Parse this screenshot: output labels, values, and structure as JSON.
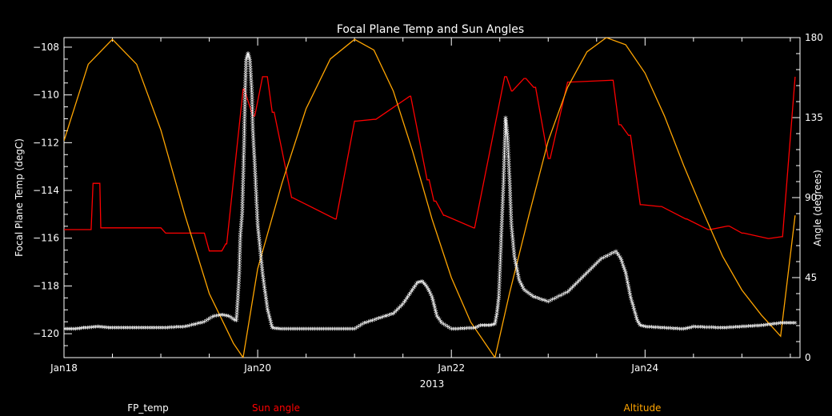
{
  "chart_data": {
    "type": "line",
    "title": "Focal Plane Temp and Sun Angles",
    "xlabel": "2013",
    "ylabel_left": "Focal Plane Temp (degC)",
    "ylabel_right": "Angle (degrees)",
    "xlim": [
      18.0,
      25.6
    ],
    "ylim_left": [
      -121.0,
      -107.6
    ],
    "ylim_right": [
      0,
      180
    ],
    "x_ticks": [
      {
        "value": 18,
        "label": "Jan18"
      },
      {
        "value": 20,
        "label": "Jan20"
      },
      {
        "value": 22,
        "label": "Jan22"
      },
      {
        "value": 24,
        "label": "Jan24"
      }
    ],
    "y_ticks_left": [
      {
        "value": -108,
        "label": "−108"
      },
      {
        "value": -110,
        "label": "−110"
      },
      {
        "value": -112,
        "label": "−112"
      },
      {
        "value": -114,
        "label": "−114"
      },
      {
        "value": -116,
        "label": "−116"
      },
      {
        "value": -118,
        "label": "−118"
      },
      {
        "value": -120,
        "label": "−120"
      }
    ],
    "y_ticks_right": [
      {
        "value": 0,
        "label": "0"
      },
      {
        "value": 45,
        "label": "45"
      },
      {
        "value": 90,
        "label": "90"
      },
      {
        "value": 135,
        "label": "135"
      },
      {
        "value": 180,
        "label": "180"
      }
    ],
    "legend": [
      {
        "label": "FP_temp",
        "color": "#ffffff"
      },
      {
        "label": "Sun angle",
        "color": "#ff0000"
      },
      {
        "label": "Altitude",
        "color": "#ffa500"
      }
    ],
    "series": [
      {
        "name": "Sun angle",
        "axis": "right",
        "color": "#ff0000",
        "style": "step",
        "x": [
          18.0,
          18.28,
          18.3,
          18.37,
          18.38,
          19.0,
          19.05,
          19.45,
          19.5,
          19.63,
          19.67,
          19.68,
          19.85,
          19.86,
          19.95,
          19.97,
          20.05,
          20.1,
          20.15,
          20.17,
          20.35,
          20.36,
          20.8,
          20.81,
          21.0,
          21.02,
          21.2,
          21.22,
          21.57,
          21.58,
          21.75,
          21.77,
          21.82,
          21.84,
          21.92,
          21.93,
          22.23,
          22.24,
          22.55,
          22.57,
          22.62,
          22.63,
          22.75,
          22.77,
          22.85,
          22.87,
          23.0,
          23.02,
          23.2,
          23.22,
          23.65,
          23.67,
          23.73,
          23.75,
          23.83,
          23.85,
          23.95,
          23.97,
          24.15,
          24.17,
          24.42,
          24.43,
          24.65,
          24.67,
          24.85,
          24.87,
          25.0,
          25.02,
          25.27,
          25.28,
          25.41,
          25.42,
          25.55
        ],
        "values": [
          72,
          72,
          98,
          98,
          73,
          73,
          70,
          70,
          60,
          60,
          64,
          64,
          151,
          151,
          136,
          136,
          158,
          158,
          138,
          138,
          90,
          90,
          78,
          78,
          133,
          133,
          134,
          134,
          147,
          147,
          100,
          100,
          88,
          88,
          80,
          80,
          73,
          73,
          158,
          158,
          150,
          150,
          157,
          157,
          152,
          152,
          112,
          112,
          155,
          155,
          156,
          156,
          131,
          131,
          125,
          125,
          86,
          86,
          85,
          85,
          78,
          78,
          72,
          72,
          74,
          74,
          70,
          70,
          67,
          67,
          68,
          68,
          158
        ]
      },
      {
        "name": "Altitude",
        "axis": "right",
        "color": "#ffa500",
        "style": "line",
        "x": [
          18.0,
          18.25,
          18.5,
          18.75,
          19.0,
          19.25,
          19.5,
          19.75,
          19.85,
          20.0,
          20.25,
          20.5,
          20.75,
          21.0,
          21.2,
          21.4,
          21.6,
          21.8,
          22.0,
          22.2,
          22.4,
          22.45,
          22.6,
          22.8,
          23.0,
          23.2,
          23.4,
          23.6,
          23.8,
          24.0,
          24.2,
          24.4,
          24.6,
          24.8,
          25.0,
          25.2,
          25.4,
          25.55
        ],
        "values": [
          122,
          165,
          179,
          165,
          128,
          80,
          36,
          8,
          0,
          50,
          98,
          140,
          168,
          179,
          173,
          150,
          116,
          78,
          45,
          20,
          4,
          0,
          36,
          80,
          122,
          152,
          172,
          180,
          176,
          160,
          136,
          108,
          82,
          57,
          38,
          24,
          12,
          80
        ]
      },
      {
        "name": "FP_temp",
        "axis": "left",
        "color": "#ffffff",
        "style": "markers",
        "marker": "*",
        "x": [
          18.0,
          18.1,
          18.2,
          18.35,
          18.5,
          18.75,
          19.0,
          19.25,
          19.45,
          19.55,
          19.62,
          19.7,
          19.75,
          19.78,
          19.79,
          19.8,
          19.81,
          19.82,
          19.84,
          19.86,
          19.87,
          19.88,
          19.9,
          19.92,
          19.94,
          19.95,
          19.97,
          20.0,
          20.05,
          20.1,
          20.15,
          20.25,
          20.5,
          20.75,
          21.0,
          21.1,
          21.25,
          21.4,
          21.5,
          21.6,
          21.65,
          21.7,
          21.75,
          21.8,
          21.85,
          21.9,
          22.0,
          22.25,
          22.3,
          22.4,
          22.45,
          22.47,
          22.49,
          22.5,
          22.52,
          22.54,
          22.56,
          22.58,
          22.6,
          22.62,
          22.65,
          22.7,
          22.75,
          22.85,
          23.0,
          23.2,
          23.4,
          23.55,
          23.7,
          23.75,
          23.8,
          23.85,
          23.92,
          23.95,
          24.0,
          24.2,
          24.4,
          24.5,
          24.8,
          25.0,
          25.2,
          25.4,
          25.55
        ],
        "values": [
          -119.85,
          -119.85,
          -119.8,
          -119.75,
          -119.8,
          -119.8,
          -119.8,
          -119.75,
          -119.55,
          -119.3,
          -119.25,
          -119.3,
          -119.45,
          -119.5,
          -118.9,
          -118.2,
          -117.5,
          -116.0,
          -115.0,
          -112.0,
          -110.0,
          -108.6,
          -108.3,
          -108.6,
          -110.0,
          -111.5,
          -113.0,
          -115.5,
          -117.5,
          -119.0,
          -119.8,
          -119.85,
          -119.85,
          -119.85,
          -119.85,
          -119.6,
          -119.4,
          -119.2,
          -118.8,
          -118.2,
          -117.9,
          -117.85,
          -118.1,
          -118.5,
          -119.3,
          -119.6,
          -119.85,
          -119.8,
          -119.7,
          -119.7,
          -119.65,
          -119.2,
          -118.5,
          -117.5,
          -115.5,
          -113.5,
          -111.0,
          -111.8,
          -113.5,
          -115.5,
          -116.8,
          -117.8,
          -118.2,
          -118.5,
          -118.7,
          -118.3,
          -117.5,
          -116.9,
          -116.6,
          -116.9,
          -117.5,
          -118.5,
          -119.5,
          -119.7,
          -119.75,
          -119.8,
          -119.85,
          -119.75,
          -119.8,
          -119.75,
          -119.7,
          -119.6,
          -119.6
        ]
      }
    ]
  }
}
